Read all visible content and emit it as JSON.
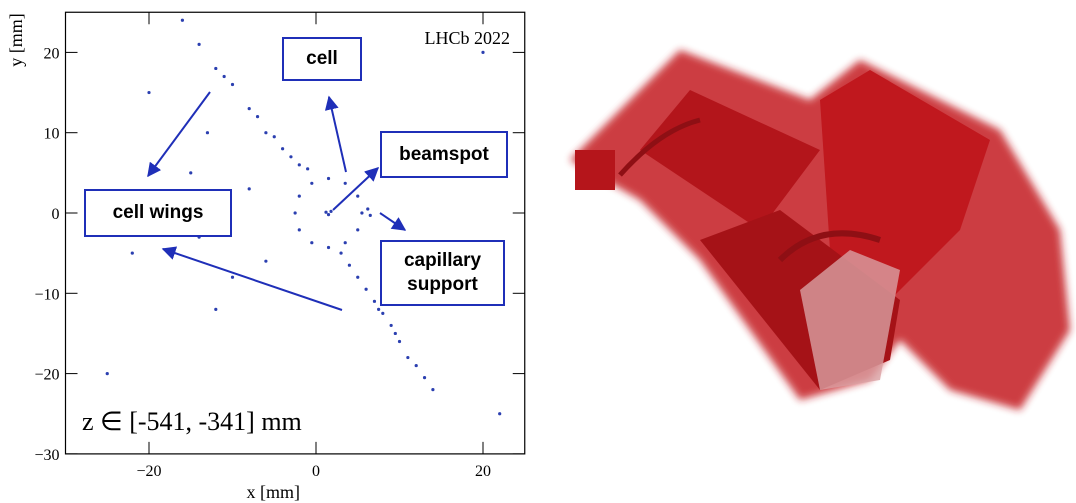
{
  "chart_data": {
    "type": "scatter",
    "x": [
      5.5,
      5,
      3.5,
      1.5,
      -0.5,
      -2,
      -2.5,
      -2,
      -0.5,
      1.5,
      3.5,
      5,
      -16,
      -14,
      -12,
      -10,
      -8,
      -6,
      -4,
      -3,
      -2,
      -1,
      -11,
      -7,
      -5,
      3,
      4,
      5,
      6,
      7,
      8,
      9,
      10,
      11,
      12,
      13,
      14,
      7.5,
      9.5,
      1.2,
      1.5,
      1.8,
      6.2,
      6.5,
      -13,
      -15,
      -12,
      -14,
      -10,
      -12,
      -6,
      -8,
      15,
      17,
      10,
      -20,
      -25,
      20,
      -22,
      22
    ],
    "y": [
      0,
      2.1,
      3.7,
      4.3,
      3.7,
      2.1,
      0,
      -2.1,
      -3.7,
      -4.3,
      -3.7,
      -2.1,
      24,
      21,
      18,
      16,
      13,
      10,
      8,
      7,
      6,
      5.5,
      17,
      12,
      9.5,
      -5,
      -6.5,
      -8,
      -9.5,
      -11,
      -12.5,
      -14,
      -16,
      -18,
      -19,
      -20.5,
      -22,
      -12,
      -15,
      0.1,
      -0.2,
      0.2,
      0.5,
      -0.3,
      10,
      5,
      2,
      -3,
      -8,
      -12,
      -6,
      3,
      -5,
      -10,
      5,
      15,
      -20,
      20,
      -5,
      -25
    ],
    "color": "#2b3fb0",
    "xlim": [
      -30,
      25
    ],
    "ylim": [
      -30,
      25
    ],
    "xticks": [
      {
        "value": -20,
        "label": "−20"
      },
      0,
      20
    ],
    "yticks": [
      {
        "value": -30,
        "label": "−30"
      },
      {
        "value": -20,
        "label": "−20"
      },
      {
        "value": -10,
        "label": "−10"
      },
      0,
      10,
      20
    ],
    "xlabel": "x [mm]",
    "ylabel": "y [mm]",
    "experiment_label": "LHCb 2022",
    "z_range_label": "z ∈ [-541, -341] mm",
    "annotations": [
      "cell",
      "beamspot",
      "cell wings",
      "capillary support"
    ]
  }
}
